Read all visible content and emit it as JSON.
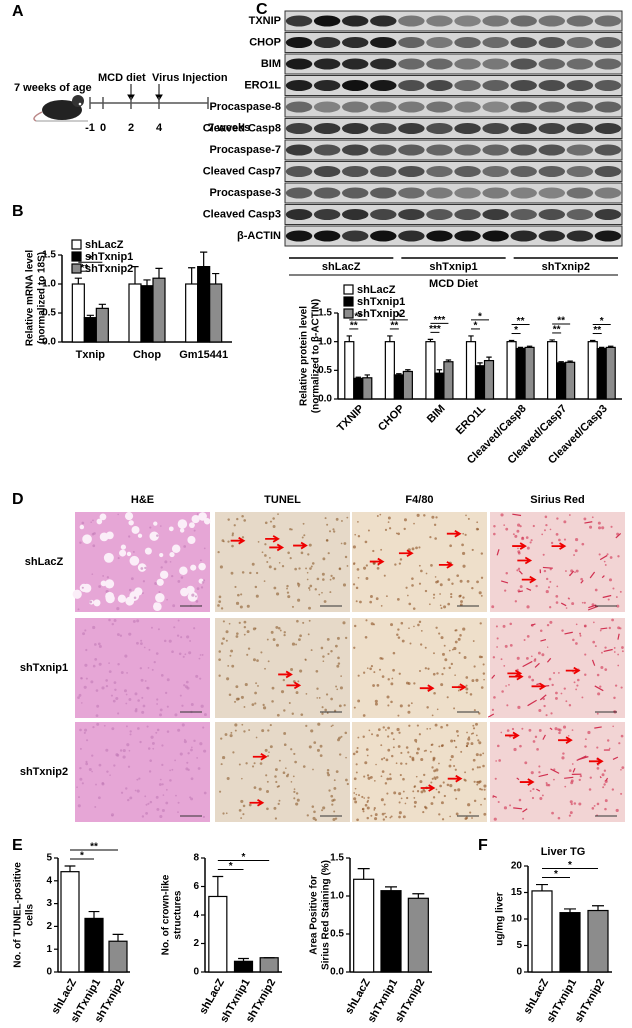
{
  "panel_labels": [
    "A",
    "B",
    "C",
    "D",
    "E",
    "F"
  ],
  "panel_a": {
    "start_label": "7 weeks of age",
    "events": [
      "MCD diet",
      "Virus Injection"
    ],
    "timeline": [
      "-1",
      "0",
      "2",
      "4",
      "7 weeks"
    ]
  },
  "blots": {
    "rows": [
      "TXNIP",
      "CHOP",
      "BIM",
      "ERO1L",
      "Procaspase-8",
      "Cleaved Casp8",
      "Procaspase-7",
      "Cleaved Casp7",
      "Procaspase-3",
      "Cleaved Casp3",
      "β-ACTIN"
    ],
    "groups": [
      "shLacZ",
      "shTxnip1",
      "shTxnip2"
    ],
    "condition": "MCD Diet"
  },
  "histology": {
    "columns": [
      "H&E",
      "TUNEL",
      "F4/80",
      "Sirius Red"
    ],
    "rows": [
      "shLacZ",
      "shTxnip1",
      "shTxnip2"
    ]
  },
  "chart_data": [
    {
      "type": "bar",
      "ylabel": [
        "Relative mRNA level",
        "(normalized to 18S)"
      ],
      "categories": [
        "Txnip",
        "Chop",
        "Gm15441"
      ],
      "legend": "upper left",
      "series": [
        {
          "name": "shLacZ",
          "color": "#ffffff",
          "values": [
            1.0,
            1.0,
            1.0
          ],
          "errors": [
            0.1,
            0.3,
            0.28
          ]
        },
        {
          "name": "shTxnip1",
          "color": "#000000",
          "values": [
            0.42,
            0.97,
            1.3
          ],
          "errors": [
            0.04,
            0.1,
            0.25
          ]
        },
        {
          "name": "shTxnip2",
          "color": "#8c8c8c",
          "values": [
            0.58,
            1.1,
            1.0
          ],
          "errors": [
            0.07,
            0.17,
            0.18
          ]
        }
      ],
      "significance": [
        [
          "**",
          "*"
        ],
        null,
        null
      ],
      "ylim": [
        0,
        1.5
      ],
      "yticks": [
        {
          "value": 0,
          "label": "0.0"
        },
        {
          "value": 0.5,
          "label": "0.5"
        },
        {
          "value": 1,
          "label": "1.0"
        },
        {
          "value": 1.5,
          "label": "1.5"
        }
      ]
    },
    {
      "type": "bar",
      "ylabel": [
        "Relative protein level",
        "(normalized to β-ACTIN)"
      ],
      "categories": [
        "TXNIP",
        "CHOP",
        "BIM",
        "ERO1L",
        "Cleaved/Casp8",
        "Cleaved/Casp7",
        "Cleaved/Casp3"
      ],
      "legend": "upper left",
      "series": [
        {
          "name": "shLacZ",
          "color": "#ffffff",
          "values": [
            1.0,
            1.0,
            1.0,
            1.0,
            1.0,
            1.0,
            1.0
          ],
          "errors": [
            0.1,
            0.1,
            0.04,
            0.1,
            0.02,
            0.03,
            0.02
          ]
        },
        {
          "name": "shTxnip1",
          "color": "#000000",
          "values": [
            0.36,
            0.42,
            0.45,
            0.58,
            0.88,
            0.63,
            0.88
          ],
          "errors": [
            0.02,
            0.02,
            0.06,
            0.05,
            0.02,
            0.02,
            0.02
          ]
        },
        {
          "name": "shTxnip2",
          "color": "#8c8c8c",
          "values": [
            0.37,
            0.48,
            0.65,
            0.67,
            0.9,
            0.64,
            0.9
          ],
          "errors": [
            0.05,
            0.03,
            0.03,
            0.06,
            0.02,
            0.02,
            0.02
          ]
        }
      ],
      "significance": [
        [
          "**",
          "**"
        ],
        [
          "**",
          "*"
        ],
        [
          "***",
          "***"
        ],
        [
          "*",
          "*"
        ],
        [
          "*",
          "**"
        ],
        [
          "**",
          "**"
        ],
        [
          "**",
          "*"
        ]
      ],
      "ylim": [
        0,
        1.5
      ],
      "yticks": [
        {
          "value": 0,
          "label": "0.0"
        },
        {
          "value": 0.5,
          "label": "0.5"
        },
        {
          "value": 1,
          "label": "1.0"
        },
        {
          "value": 1.5,
          "label": "1.5"
        }
      ]
    },
    {
      "type": "bar",
      "ylabel": [
        "No. of TUNEL-positive",
        "cells"
      ],
      "categories": [
        "shLacZ",
        "shTxnip1",
        "shTxnip2"
      ],
      "colors": [
        "#ffffff",
        "#000000",
        "#8c8c8c"
      ],
      "values": [
        4.4,
        2.35,
        1.35
      ],
      "errors": [
        0.25,
        0.3,
        0.3
      ],
      "significance": [
        "*",
        "**"
      ],
      "ylim": [
        0,
        5
      ],
      "yticks": [
        0,
        1,
        2,
        3,
        4,
        5
      ]
    },
    {
      "type": "bar",
      "ylabel": [
        "No. of crown-like",
        "structures"
      ],
      "categories": [
        "shLacZ",
        "shTxnip1",
        "shTxnip2"
      ],
      "colors": [
        "#ffffff",
        "#000000",
        "#8c8c8c"
      ],
      "values": [
        5.3,
        0.75,
        1.0
      ],
      "errors": [
        1.4,
        0.2,
        0
      ],
      "significance": [
        "*",
        "*"
      ],
      "ylim": [
        0,
        8
      ],
      "yticks": [
        0,
        2,
        4,
        6,
        8
      ]
    },
    {
      "type": "bar",
      "ylabel": [
        "Area Positive for",
        "Sirius Red Staining (%)"
      ],
      "categories": [
        "shLacZ",
        "shTxnip1",
        "shTxnip2"
      ],
      "colors": [
        "#ffffff",
        "#000000",
        "#8c8c8c"
      ],
      "values": [
        1.22,
        1.07,
        0.97
      ],
      "errors": [
        0.14,
        0.05,
        0.06
      ],
      "ylim": [
        0,
        1.5
      ],
      "yticks": [
        {
          "value": 0,
          "label": "0.0"
        },
        {
          "value": 0.5,
          "label": "0.5"
        },
        {
          "value": 1,
          "label": "1.0"
        },
        {
          "value": 1.5,
          "label": "1.5"
        }
      ]
    },
    {
      "type": "bar",
      "title": "Liver TG",
      "ylabel": [
        "ug/mg liver"
      ],
      "categories": [
        "shLacZ",
        "shTxnip1",
        "shTxnip2"
      ],
      "colors": [
        "#ffffff",
        "#000000",
        "#8c8c8c"
      ],
      "values": [
        15.3,
        11.2,
        11.6
      ],
      "errors": [
        1.2,
        0.7,
        0.9
      ],
      "significance": [
        "*",
        "*"
      ],
      "ylim": [
        0,
        20
      ],
      "yticks": [
        0,
        5,
        10,
        15,
        20
      ]
    }
  ]
}
